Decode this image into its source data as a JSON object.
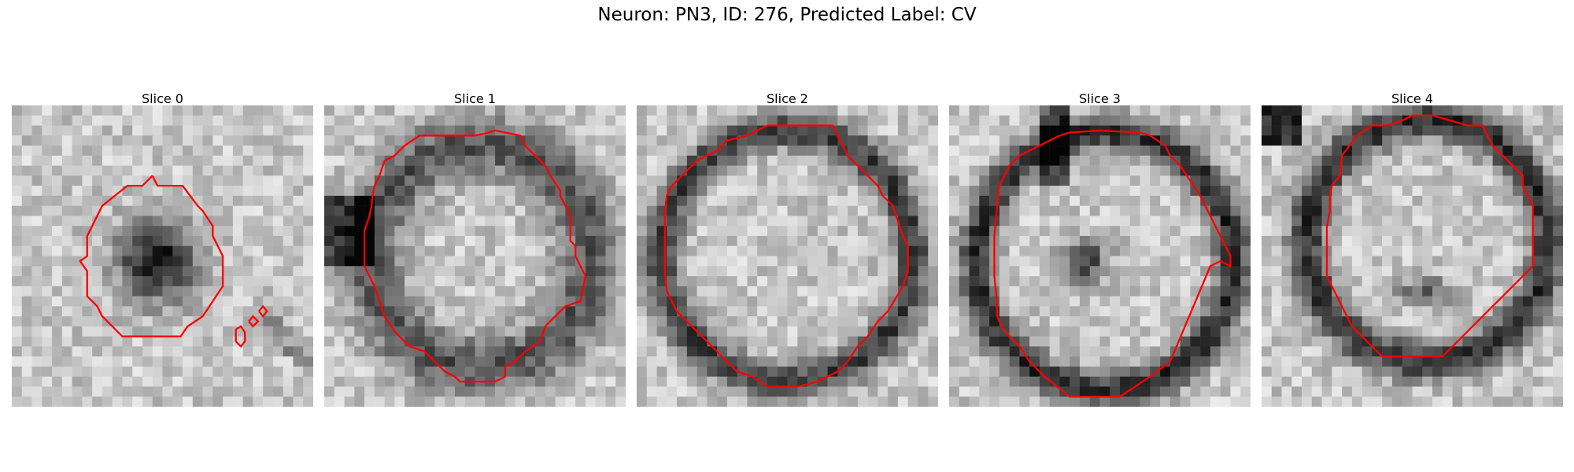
{
  "figure": {
    "title": "Neuron: PN3, ID: 276, Predicted Label: CV"
  },
  "slices": [
    {
      "label": "Slice 0"
    },
    {
      "label": "Slice 1"
    },
    {
      "label": "Slice 2"
    },
    {
      "label": "Slice 3"
    },
    {
      "label": "Slice 4"
    }
  ],
  "colors": {
    "contour": "#ff0000",
    "background": "#ffffff"
  },
  "image": {
    "colormap": "gray",
    "grid": [
      30,
      30
    ]
  }
}
